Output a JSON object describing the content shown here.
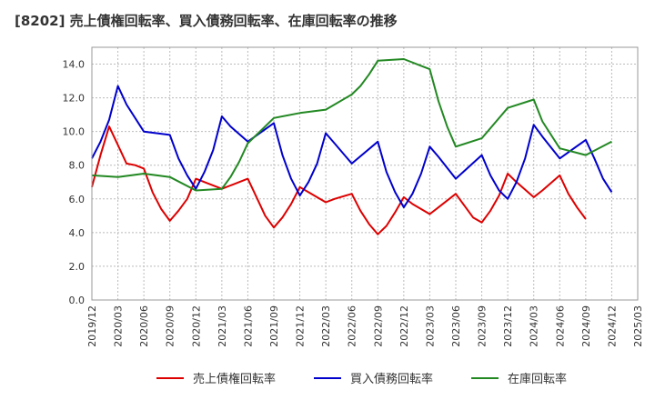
{
  "chart_data": {
    "type": "line",
    "title": "[8202]  売上債権回転率、買入債務回転率、在庫回転率の推移",
    "ylim": [
      0,
      15
    ],
    "y_ticks": [
      "0.0",
      "2.0",
      "4.0",
      "6.0",
      "8.0",
      "10.0",
      "12.0",
      "14.0"
    ],
    "y_tick_values": [
      0,
      2,
      4,
      6,
      8,
      10,
      12,
      14
    ],
    "x_tick_labels": [
      "2019/12",
      "2020/03",
      "2020/06",
      "2020/09",
      "2020/12",
      "2021/03",
      "2021/06",
      "2021/09",
      "2021/12",
      "2022/03",
      "2022/06",
      "2022/09",
      "2022/12",
      "2023/03",
      "2023/06",
      "2023/09",
      "2023/12",
      "2024/03",
      "2024/06",
      "2024/09",
      "2024/12",
      "2025/03"
    ],
    "x_start": "2019/12",
    "x_end": "2025/03",
    "grid": true,
    "legend_position": "bottom",
    "series": [
      {
        "name": "売上債権回転率",
        "color": "#dd0000",
        "points": [
          [
            0,
            6.7
          ],
          [
            1,
            8.6
          ],
          [
            2,
            10.3
          ],
          [
            3,
            9.2
          ],
          [
            4,
            8.1
          ],
          [
            5,
            8.0
          ],
          [
            6,
            7.8
          ],
          [
            7,
            6.4
          ],
          [
            8,
            5.4
          ],
          [
            9,
            4.7
          ],
          [
            10,
            5.3
          ],
          [
            11,
            6.0
          ],
          [
            12,
            7.2
          ],
          [
            13,
            7.0
          ],
          [
            15,
            6.6
          ],
          [
            16,
            6.8
          ],
          [
            18,
            7.2
          ],
          [
            19,
            6.1
          ],
          [
            20,
            5.0
          ],
          [
            21,
            4.3
          ],
          [
            22,
            4.9
          ],
          [
            23,
            5.7
          ],
          [
            24,
            6.7
          ],
          [
            25,
            6.4
          ],
          [
            27,
            5.8
          ],
          [
            28,
            6.0
          ],
          [
            30,
            6.3
          ],
          [
            31,
            5.3
          ],
          [
            32,
            4.5
          ],
          [
            33,
            3.9
          ],
          [
            34,
            4.4
          ],
          [
            35,
            5.2
          ],
          [
            36,
            6.1
          ],
          [
            37,
            5.7
          ],
          [
            39,
            5.1
          ],
          [
            40,
            5.5
          ],
          [
            42,
            6.3
          ],
          [
            43,
            5.6
          ],
          [
            44,
            4.9
          ],
          [
            45,
            4.6
          ],
          [
            46,
            5.3
          ],
          [
            47,
            6.2
          ],
          [
            48,
            7.5
          ],
          [
            49,
            7.0
          ],
          [
            51,
            6.1
          ],
          [
            52,
            6.5
          ],
          [
            54,
            7.4
          ],
          [
            55,
            6.3
          ],
          [
            56,
            5.5
          ],
          [
            57,
            4.8
          ]
        ]
      },
      {
        "name": "買入債務回転率",
        "color": "#0000cc",
        "points": [
          [
            0,
            8.4
          ],
          [
            1,
            9.4
          ],
          [
            2,
            10.7
          ],
          [
            3,
            12.7
          ],
          [
            4,
            11.6
          ],
          [
            6,
            10.0
          ],
          [
            9,
            9.8
          ],
          [
            10,
            8.4
          ],
          [
            11,
            7.4
          ],
          [
            12,
            6.6
          ],
          [
            13,
            7.6
          ],
          [
            14,
            8.9
          ],
          [
            15,
            10.9
          ],
          [
            16,
            10.3
          ],
          [
            18,
            9.4
          ],
          [
            21,
            10.5
          ],
          [
            22,
            8.6
          ],
          [
            23,
            7.2
          ],
          [
            24,
            6.2
          ],
          [
            25,
            7.0
          ],
          [
            26,
            8.1
          ],
          [
            27,
            9.9
          ],
          [
            28,
            9.3
          ],
          [
            30,
            8.1
          ],
          [
            33,
            9.4
          ],
          [
            34,
            7.6
          ],
          [
            35,
            6.4
          ],
          [
            36,
            5.5
          ],
          [
            37,
            6.3
          ],
          [
            38,
            7.5
          ],
          [
            39,
            9.1
          ],
          [
            40,
            8.5
          ],
          [
            42,
            7.2
          ],
          [
            45,
            8.6
          ],
          [
            46,
            7.4
          ],
          [
            47,
            6.5
          ],
          [
            48,
            6.0
          ],
          [
            49,
            7.0
          ],
          [
            50,
            8.4
          ],
          [
            51,
            10.4
          ],
          [
            52,
            9.7
          ],
          [
            54,
            8.4
          ],
          [
            57,
            9.5
          ],
          [
            58,
            8.4
          ],
          [
            59,
            7.2
          ],
          [
            60,
            6.4
          ]
        ]
      },
      {
        "name": "在庫回転率",
        "color": "#228822",
        "points": [
          [
            0,
            7.4
          ],
          [
            3,
            7.3
          ],
          [
            6,
            7.5
          ],
          [
            9,
            7.3
          ],
          [
            12,
            6.5
          ],
          [
            15,
            6.6
          ],
          [
            16,
            7.3
          ],
          [
            17,
            8.2
          ],
          [
            18,
            9.3
          ],
          [
            21,
            10.8
          ],
          [
            24,
            11.1
          ],
          [
            27,
            11.3
          ],
          [
            30,
            12.2
          ],
          [
            31,
            12.7
          ],
          [
            32,
            13.4
          ],
          [
            33,
            14.2
          ],
          [
            36,
            14.3
          ],
          [
            38,
            13.9
          ],
          [
            39,
            13.7
          ],
          [
            40,
            11.8
          ],
          [
            41,
            10.3
          ],
          [
            42,
            9.1
          ],
          [
            45,
            9.6
          ],
          [
            48,
            11.4
          ],
          [
            51,
            11.9
          ],
          [
            52,
            10.6
          ],
          [
            54,
            9.0
          ],
          [
            57,
            8.6
          ],
          [
            60,
            9.4
          ]
        ]
      }
    ]
  }
}
